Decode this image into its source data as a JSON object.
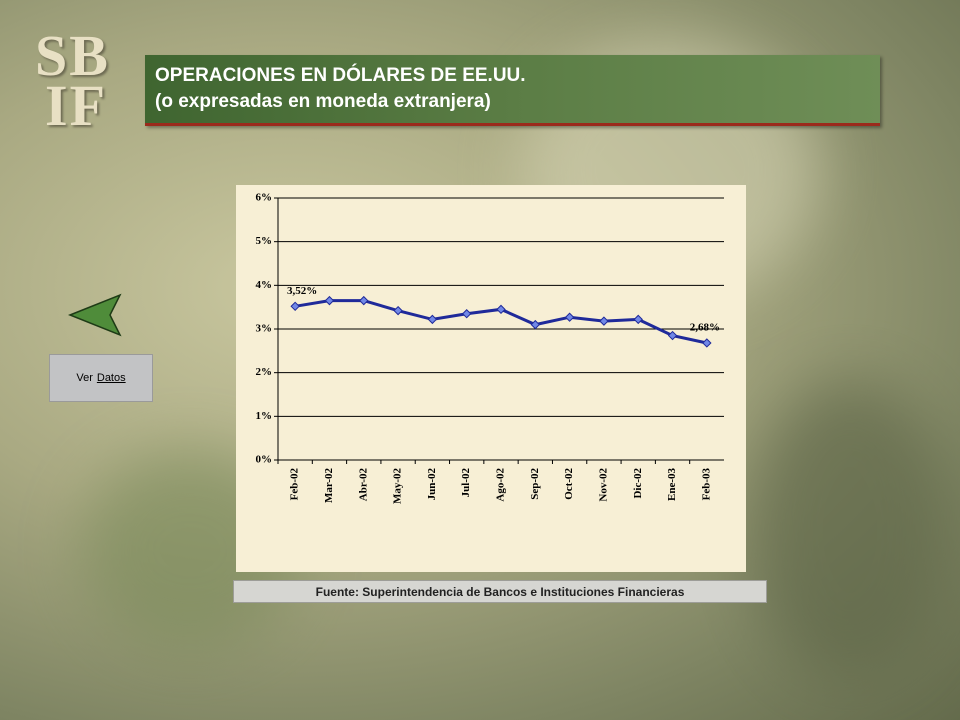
{
  "header": {
    "logo": [
      "SB",
      "IF"
    ],
    "title": "OPERACIONES EN DÓLARES DE EE.UU.",
    "subtitle": "(o expresadas en moneda extranjera)"
  },
  "nav": {
    "button_prefix": "Ver",
    "button_link": "Datos"
  },
  "chart_data": {
    "type": "line",
    "categories": [
      "Feb-02",
      "Mar-02",
      "Abr-02",
      "May-02",
      "Jun-02",
      "Jul-02",
      "Ago-02",
      "Sep-02",
      "Oct-02",
      "Nov-02",
      "Dic-02",
      "Ene-03",
      "Feb-03"
    ],
    "values": [
      3.52,
      3.65,
      3.65,
      3.42,
      3.22,
      3.35,
      3.45,
      3.1,
      3.27,
      3.18,
      3.22,
      2.85,
      2.68
    ],
    "value_labels": [
      "3,52%",
      null,
      null,
      null,
      null,
      null,
      null,
      null,
      null,
      null,
      null,
      null,
      "2,68%"
    ],
    "color": "#1f2a9a",
    "marker_color": "#7188e6",
    "ylim": [
      0,
      6
    ],
    "yticks": [
      {
        "value": 0,
        "label": "0%"
      },
      {
        "value": 1,
        "label": "1%"
      },
      {
        "value": 2,
        "label": "2%"
      },
      {
        "value": 3,
        "label": "3%"
      },
      {
        "value": 4,
        "label": "4%"
      },
      {
        "value": 5,
        "label": "5%"
      },
      {
        "value": 6,
        "label": "6%"
      }
    ],
    "grid": true
  },
  "footer": {
    "source": "Fuente: Superintendencia de Bancos e Instituciones Financieras"
  }
}
